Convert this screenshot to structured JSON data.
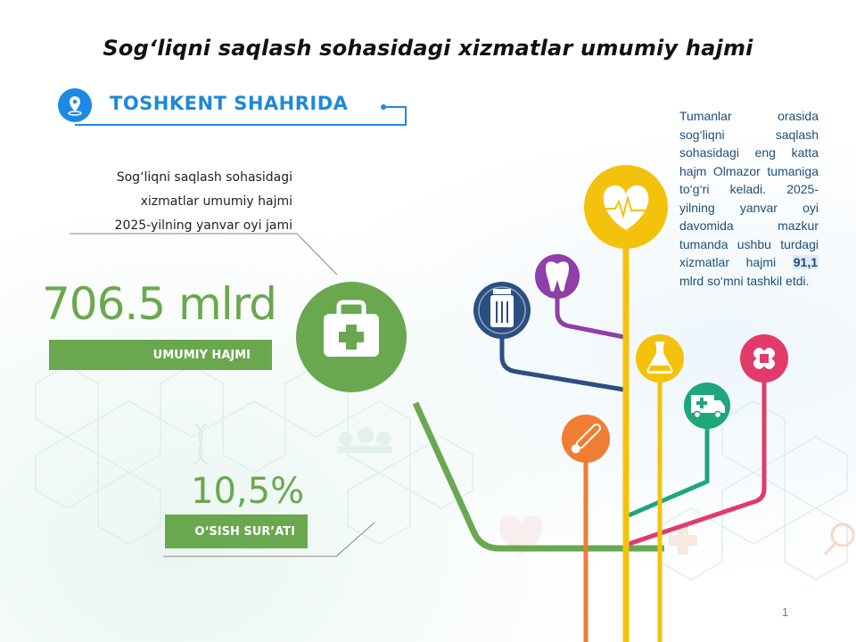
{
  "title": "Sog‘liqni saqlash sohasidagi xizmatlar umumiy hajmi",
  "location": {
    "label": "TOSHKENT SHAHRIDA",
    "icon": "location-pin-icon",
    "color": "#1e88e5"
  },
  "description": {
    "lines": [
      "Sog‘liqni saqlash sohasidagi",
      "xizmatlar umumiy hajmi",
      "2025-yilning yanvar oyi jami"
    ]
  },
  "total": {
    "value": "706.5 mlrd",
    "label": "UMUMIY HAJMI"
  },
  "growth": {
    "value": "10,5%",
    "label": "O‘SISH SUR’ATI"
  },
  "note": {
    "text_before": "Tumanlar orasida sog‘liqni saqlash sohasidagi eng katta hajm Olmazor tumaniga to‘g‘ri keladi. 2025-yilning yanvar oyi davomida mazkur tumanda ushbu turdagi xizmatlar hajmi ",
    "highlight": "91,1",
    "text_after": " mlrd so‘mni tashkil etdi."
  },
  "page_number": "1",
  "colors": {
    "green": "#6aa84f",
    "yellow": "#f4c20d",
    "purple": "#8e3fa8",
    "navy": "#2b4f80",
    "orange": "#ef7d33",
    "teal": "#1fa67a",
    "pink": "#e23a6a",
    "blue": "#1e88e5"
  },
  "icons": [
    "medical-kit-icon",
    "heart-pulse-icon",
    "tooth-icon",
    "pill-bottle-icon",
    "flask-icon",
    "bandage-icon",
    "ambulance-icon",
    "thermometer-icon"
  ]
}
